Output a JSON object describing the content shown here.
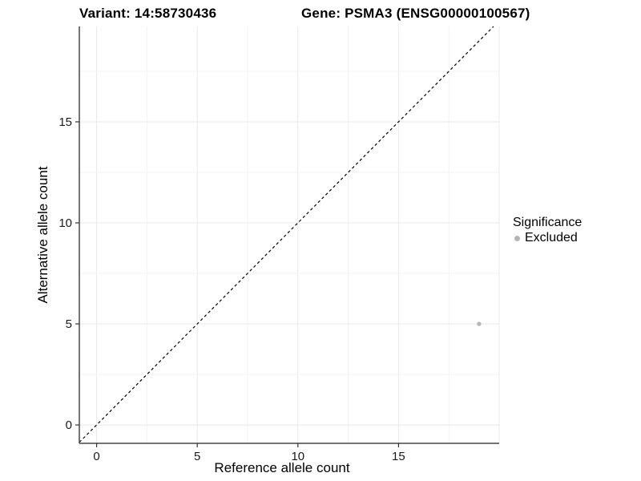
{
  "chart_data": {
    "type": "scatter",
    "titles": {
      "left": "Variant: 14:58730436",
      "right": "Gene: PSMA3 (ENSG00000100567)"
    },
    "xlabel": "Reference allele count",
    "ylabel": "Alternative allele count",
    "axes": {
      "x": {
        "ticks": [
          0,
          5,
          10,
          15
        ],
        "minor_step": 2.5,
        "lim": [
          -0.86,
          20.0
        ]
      },
      "y": {
        "ticks": [
          0,
          5,
          10,
          15
        ],
        "minor_step": 2.5,
        "lim": [
          -0.91,
          19.72
        ]
      }
    },
    "grid": {
      "major_every": 5,
      "shown": true
    },
    "points": [
      {
        "x": 19,
        "y": 5,
        "significance": "Excluded"
      }
    ],
    "reference_line": {
      "type": "identity",
      "slope": 1,
      "intercept": 0,
      "style": "dashed"
    },
    "legend": {
      "title": "Significance",
      "position": "right",
      "items": [
        {
          "label": "Excluded",
          "color": "#b5b5b5"
        }
      ]
    },
    "colors": {
      "point_excluded": "#b5b5b5",
      "grid_major": "#e8e8e8",
      "grid_minor": "#f3f3f3",
      "axis_line": "#474747",
      "tick_mark": "#333333",
      "tick_label": "#1a1a1a",
      "reference_line": "#000000",
      "background": "#ffffff"
    }
  }
}
